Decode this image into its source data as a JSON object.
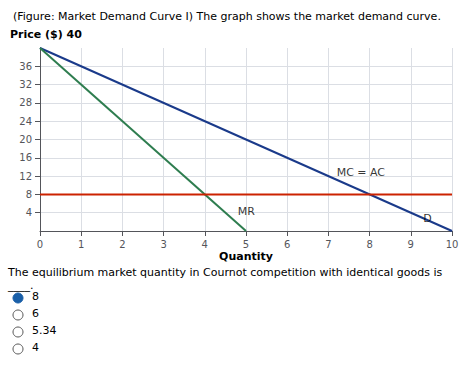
{
  "chart_data": {
    "type": "line",
    "title": "(Figure: Market Demand Curve I) The graph shows the market demand curve.",
    "xlabel": "Quantity",
    "ylabel": "Price ($) 40",
    "xlim": [
      0,
      10
    ],
    "ylim": [
      0,
      40
    ],
    "xticks": [
      0,
      1,
      2,
      3,
      4,
      5,
      6,
      7,
      8,
      9,
      10
    ],
    "yticks": [
      4,
      8,
      12,
      16,
      20,
      24,
      28,
      32,
      36
    ],
    "grid": true,
    "series": [
      {
        "name": "D",
        "color": "#1a3a8a",
        "x": [
          0,
          10
        ],
        "values": [
          40,
          0
        ],
        "label_x": 9.3,
        "label_y": 1.5
      },
      {
        "name": "MR",
        "color": "#2e7d4f",
        "x": [
          0,
          5
        ],
        "values": [
          40,
          0
        ],
        "label_x": 4.8,
        "label_y": 3.0
      },
      {
        "name": "MC = AC",
        "color": "#cc2200",
        "x": [
          0,
          10
        ],
        "values": [
          8,
          8
        ],
        "label_x": 7.2,
        "label_y": 11.5
      }
    ],
    "question": "The equilibrium market quantity in Cournot competition with identical goods is ____.",
    "choices": [
      "8",
      "6",
      "5.34",
      "4"
    ],
    "selected": 0
  }
}
